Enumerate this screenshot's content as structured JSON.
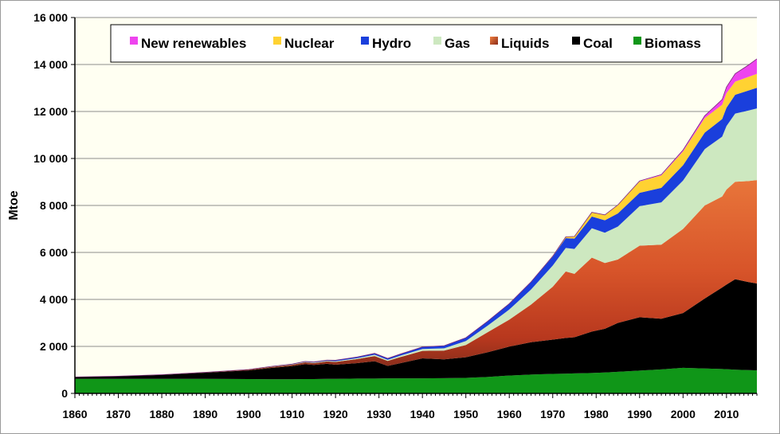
{
  "chart_data": {
    "type": "area",
    "stacked": true,
    "title": "",
    "xlabel": "",
    "ylabel": "Mtoe",
    "xlim": [
      1860,
      2017
    ],
    "ylim": [
      0,
      16000
    ],
    "xticks": [
      1860,
      1870,
      1880,
      1890,
      1900,
      1910,
      1920,
      1930,
      1940,
      1950,
      1960,
      1970,
      1980,
      1990,
      2000,
      2010
    ],
    "xtick_labels": [
      "1860",
      "1870",
      "1880",
      "1890",
      "1900",
      "1910",
      "1920",
      "1930",
      "1940",
      "1950",
      "1960",
      "1970",
      "1980",
      "1990",
      "2000",
      "2010"
    ],
    "yticks": [
      0,
      2000,
      4000,
      6000,
      8000,
      10000,
      12000,
      14000,
      16000
    ],
    "ytick_labels": [
      "0",
      "2 000",
      "4 000",
      "6 000",
      "8 000",
      "10 000",
      "12 000",
      "14 000",
      "16 000"
    ],
    "grid": "horizontal",
    "legend_position": "top",
    "plot_background": "#fffff2",
    "x": [
      1860,
      1870,
      1880,
      1890,
      1900,
      1905,
      1910,
      1913,
      1915,
      1918,
      1920,
      1925,
      1929,
      1932,
      1935,
      1940,
      1945,
      1950,
      1955,
      1960,
      1965,
      1970,
      1973,
      1975,
      1979,
      1982,
      1985,
      1990,
      1995,
      2000,
      2005,
      2009,
      2010,
      2012,
      2015,
      2017
    ],
    "series": [
      {
        "name": "Biomass",
        "color": "#109618",
        "values": [
          620,
          620,
          620,
          620,
          610,
          600,
          600,
          610,
          610,
          620,
          620,
          630,
          630,
          640,
          640,
          640,
          650,
          660,
          700,
          760,
          800,
          830,
          840,
          850,
          870,
          890,
          920,
          970,
          1020,
          1090,
          1060,
          1040,
          1030,
          1010,
          990,
          980
        ]
      },
      {
        "name": "Coal",
        "color": "#000000",
        "values": [
          80,
          110,
          170,
          260,
          370,
          480,
          560,
          630,
          600,
          640,
          600,
          660,
          740,
          530,
          650,
          850,
          800,
          880,
          1050,
          1230,
          1380,
          1460,
          1520,
          1540,
          1760,
          1860,
          2080,
          2270,
          2160,
          2330,
          2980,
          3470,
          3600,
          3850,
          3750,
          3700
        ]
      },
      {
        "name": "Liquids",
        "color": "#d95a2b",
        "values": [
          0,
          2,
          5,
          15,
          30,
          45,
          60,
          80,
          80,
          100,
          120,
          170,
          220,
          210,
          260,
          320,
          370,
          520,
          850,
          1150,
          1600,
          2250,
          2830,
          2700,
          3150,
          2800,
          2700,
          3050,
          3150,
          3580,
          3960,
          3870,
          4050,
          4150,
          4300,
          4400
        ]
      },
      {
        "name": "Gas",
        "color": "#cde8c0",
        "values": [
          0,
          0,
          1,
          2,
          5,
          10,
          15,
          20,
          22,
          25,
          30,
          40,
          55,
          50,
          60,
          80,
          100,
          170,
          280,
          430,
          640,
          900,
          1000,
          1060,
          1250,
          1290,
          1400,
          1680,
          1800,
          2060,
          2400,
          2550,
          2700,
          2900,
          3000,
          3050
        ]
      },
      {
        "name": "Hydro",
        "color": "#1a3fdc",
        "values": [
          0,
          0,
          0,
          1,
          3,
          8,
          15,
          20,
          25,
          30,
          40,
          50,
          60,
          60,
          70,
          90,
          110,
          140,
          190,
          250,
          320,
          380,
          420,
          440,
          500,
          530,
          560,
          570,
          620,
          650,
          700,
          750,
          780,
          800,
          850,
          880
        ]
      },
      {
        "name": "Nuclear",
        "color": "#ffd232",
        "values": [
          0,
          0,
          0,
          0,
          0,
          0,
          0,
          0,
          0,
          0,
          0,
          0,
          0,
          0,
          0,
          0,
          0,
          0,
          0,
          1,
          5,
          20,
          50,
          85,
          170,
          220,
          350,
          480,
          530,
          590,
          620,
          610,
          620,
          560,
          580,
          590
        ]
      },
      {
        "name": "New renewables",
        "color": "#ee44ee",
        "values": [
          0,
          0,
          0,
          0,
          0,
          0,
          0,
          0,
          0,
          0,
          0,
          0,
          0,
          0,
          0,
          0,
          0,
          0,
          0,
          0,
          0,
          2,
          5,
          6,
          8,
          10,
          15,
          25,
          35,
          60,
          100,
          220,
          260,
          340,
          500,
          640
        ]
      }
    ],
    "legend_order": [
      "New renewables",
      "Nuclear",
      "Hydro",
      "Gas",
      "Liquids",
      "Coal",
      "Biomass"
    ]
  }
}
